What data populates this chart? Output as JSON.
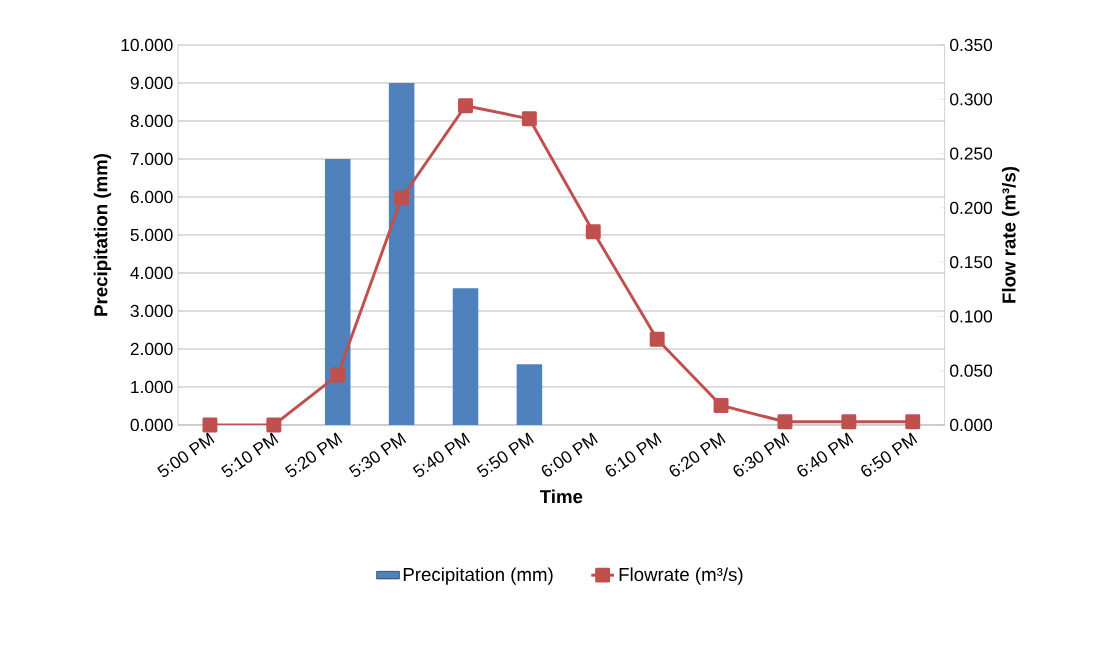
{
  "chart_data": {
    "type": "bar",
    "xlabel": "Time",
    "ylabel": "Precipitation (mm)",
    "y2label": "Flow rate (m³/s)",
    "categories": [
      "5:00 PM",
      "5:10 PM",
      "5:20 PM",
      "5:30 PM",
      "5:40 PM",
      "5:50 PM",
      "6:00 PM",
      "6:10 PM",
      "6:20 PM",
      "6:30 PM",
      "6:40 PM",
      "6:50 PM"
    ],
    "series": [
      {
        "name": "Precipitation (mm)",
        "color": "#4f81bd",
        "values": [
          0,
          0,
          7,
          9,
          3.6,
          1.6,
          0,
          0,
          0,
          0,
          0,
          0
        ]
      },
      {
        "name": "Flowrate (m³/s)",
        "type": "line",
        "axis": "y2",
        "color": "#c0504d",
        "marker": "square",
        "values": [
          0,
          0,
          0.046,
          0.209,
          0.294,
          0.282,
          0.178,
          0.079,
          0.018,
          0.003,
          0.003,
          0.003
        ]
      }
    ],
    "ylim": [
      0,
      10
    ],
    "yticks": [
      {
        "value": 0,
        "label": "0.000"
      },
      {
        "value": 1,
        "label": "1.000"
      },
      {
        "value": 2,
        "label": "2.000"
      },
      {
        "value": 3,
        "label": "3.000"
      },
      {
        "value": 4,
        "label": "4.000"
      },
      {
        "value": 5,
        "label": "5.000"
      },
      {
        "value": 6,
        "label": "6.000"
      },
      {
        "value": 7,
        "label": "7.000"
      },
      {
        "value": 8,
        "label": "8.000"
      },
      {
        "value": 9,
        "label": "9.000"
      },
      {
        "value": 10,
        "label": "10.000"
      }
    ],
    "y2lim": [
      0,
      0.35
    ],
    "y2ticks": [
      {
        "value": 0,
        "label": "0.000"
      },
      {
        "value": 0.05,
        "label": "0.050"
      },
      {
        "value": 0.1,
        "label": "0.100"
      },
      {
        "value": 0.15,
        "label": "0.150"
      },
      {
        "value": 0.2,
        "label": "0.200"
      },
      {
        "value": 0.25,
        "label": "0.250"
      },
      {
        "value": 0.3,
        "label": "0.300"
      },
      {
        "value": 0.35,
        "label": "0.350"
      }
    ],
    "grid": "y",
    "legend": "bottom"
  }
}
